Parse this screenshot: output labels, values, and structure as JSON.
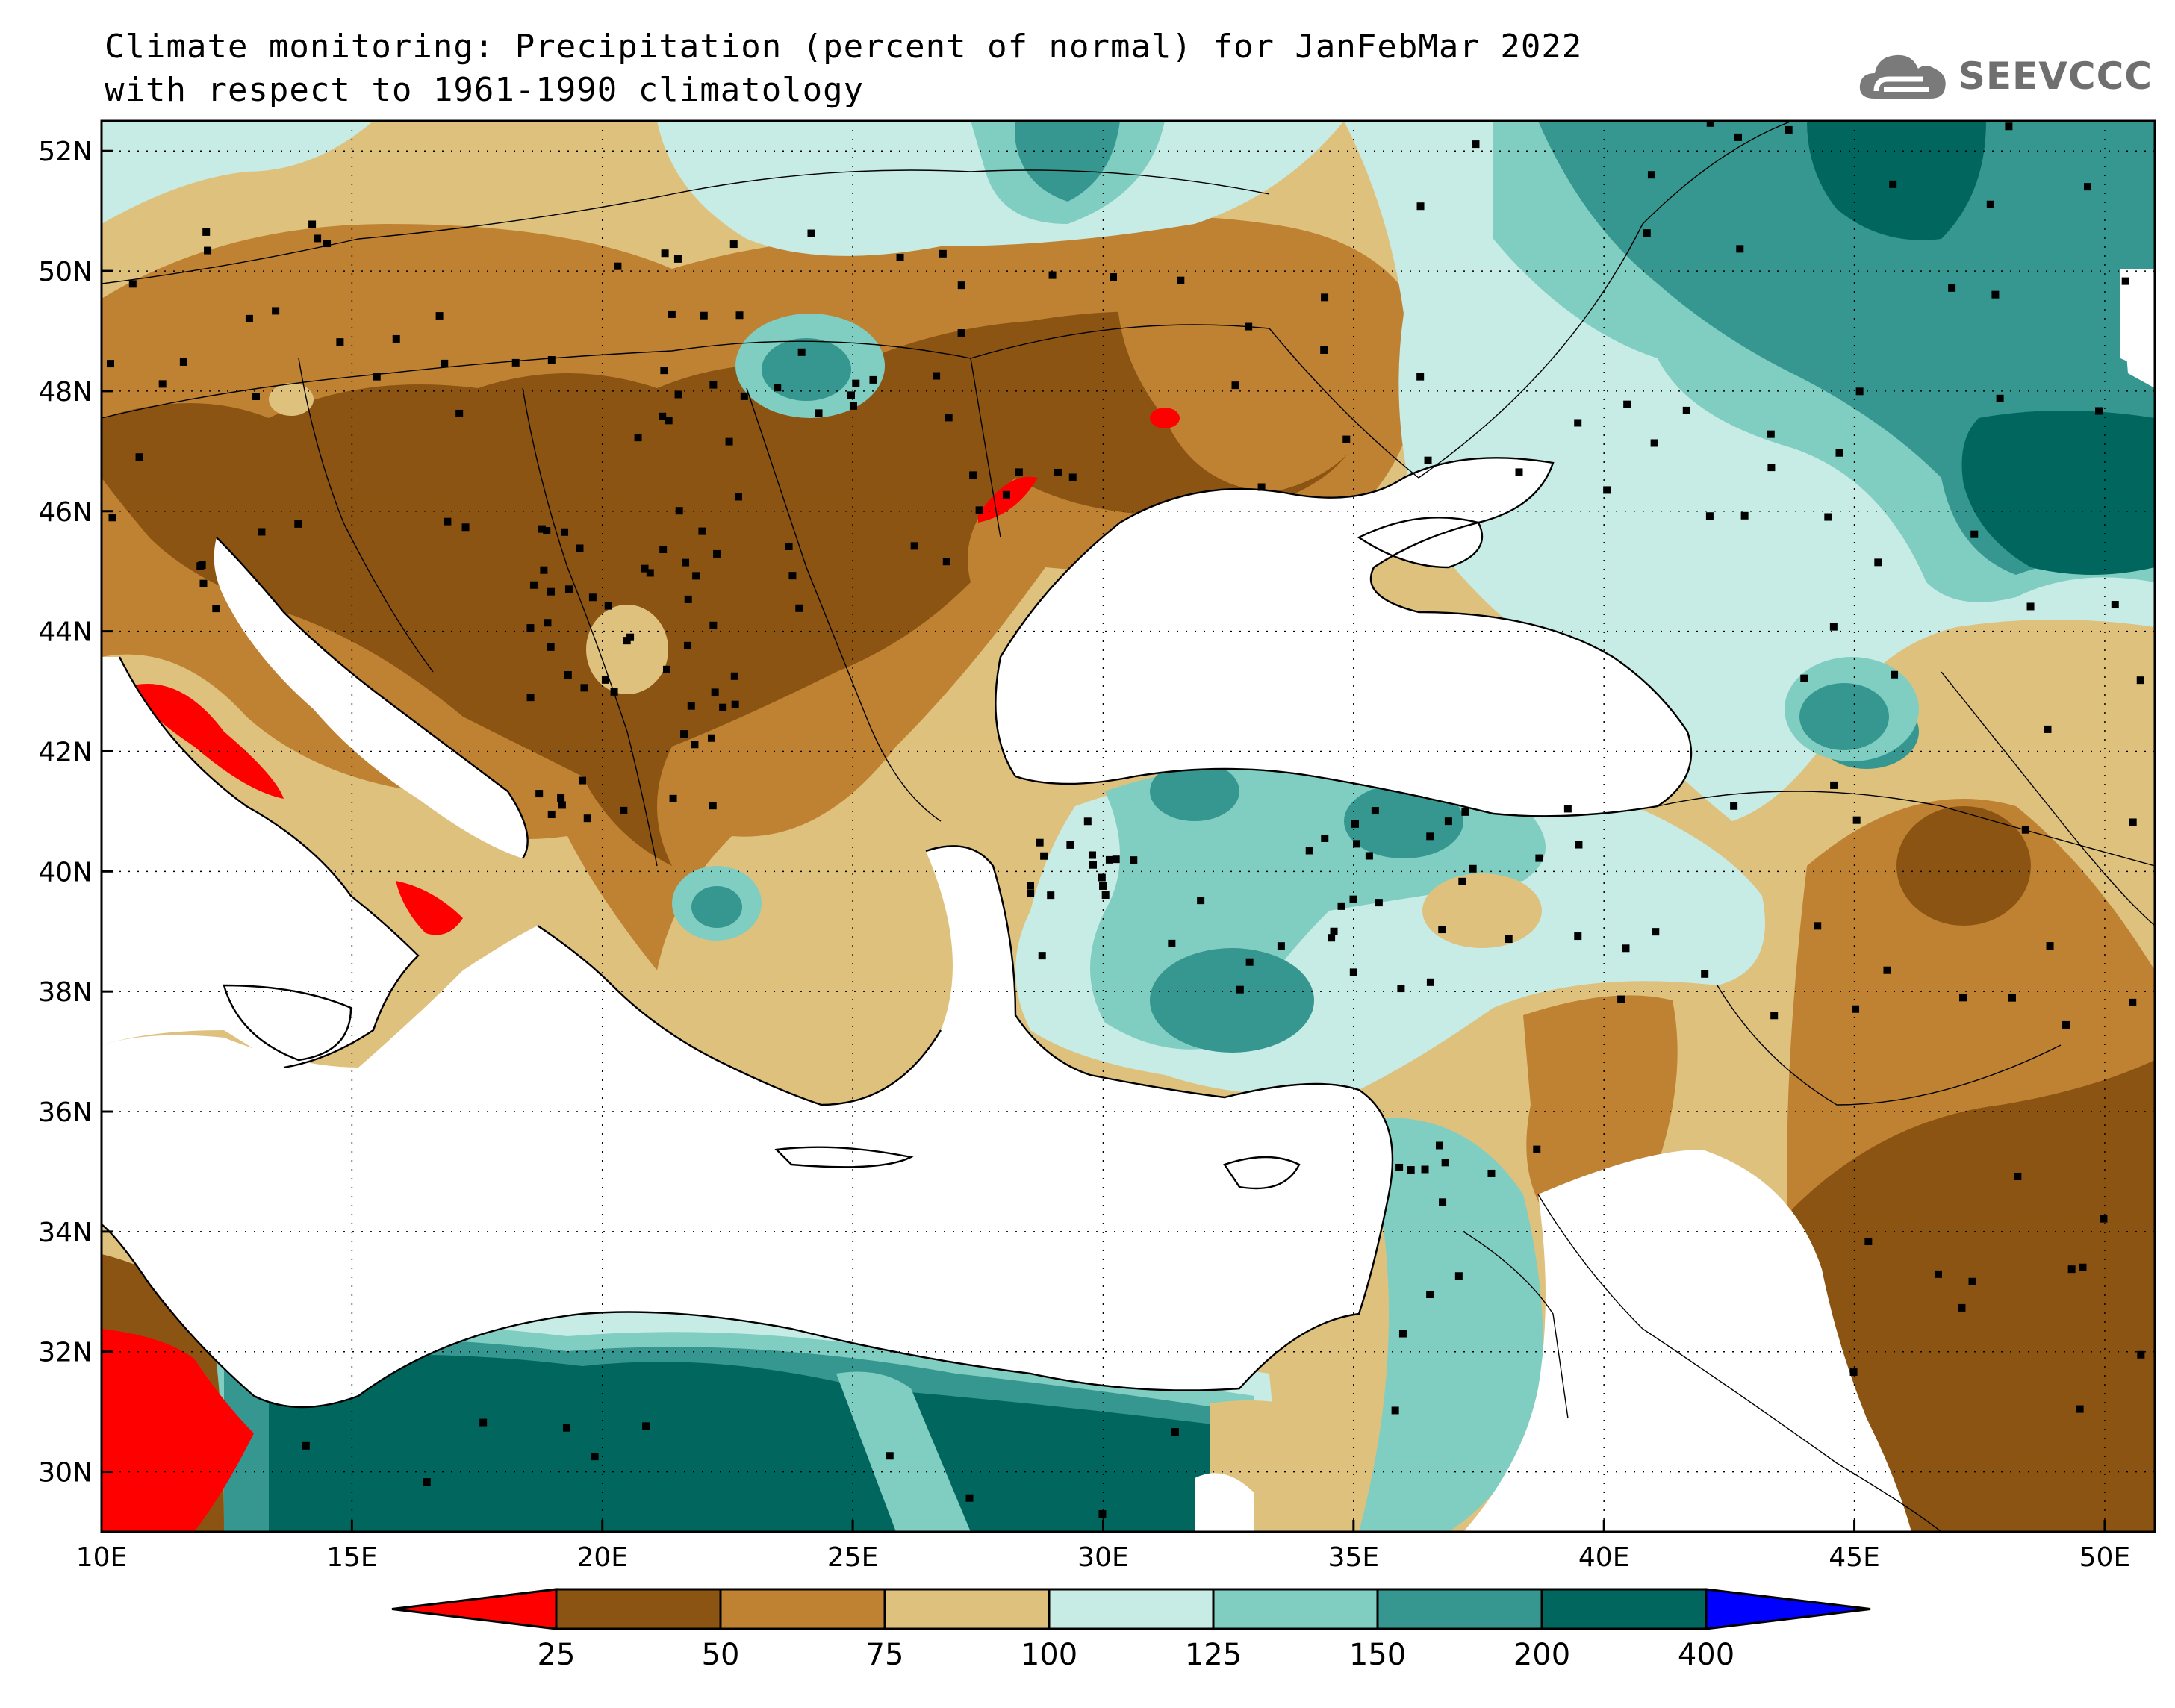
{
  "title": {
    "line1": "Climate monitoring: Precipitation (percent of normal) for JanFebMar 2022",
    "line2": "with respect to 1961-1990 climatology"
  },
  "logo": {
    "text": "SEEVCCC",
    "icon": "cloud-icon"
  },
  "map": {
    "lon_range": [
      10,
      51
    ],
    "lat_range": [
      29,
      52.5
    ],
    "lon_ticks": [
      10,
      15,
      20,
      25,
      30,
      35,
      40,
      45,
      50
    ],
    "lon_tick_labels": [
      "10E",
      "15E",
      "20E",
      "25E",
      "30E",
      "35E",
      "40E",
      "45E",
      "50E"
    ],
    "lat_ticks": [
      30,
      32,
      34,
      36,
      38,
      40,
      42,
      44,
      46,
      48,
      50,
      52
    ],
    "lat_tick_labels": [
      "30N",
      "32N",
      "34N",
      "36N",
      "38N",
      "40N",
      "42N",
      "44N",
      "46N",
      "48N",
      "50N",
      "52N"
    ],
    "gridlines": "dotted"
  },
  "colorbar": {
    "levels": [
      "25",
      "50",
      "75",
      "100",
      "125",
      "150",
      "200",
      "400"
    ],
    "colors": [
      "#ff0000",
      "#8c5413",
      "#bf8233",
      "#dfc17e",
      "#c7ebe5",
      "#80cdc1",
      "#35978f",
      "#01665e",
      "#0000ff"
    ]
  }
}
